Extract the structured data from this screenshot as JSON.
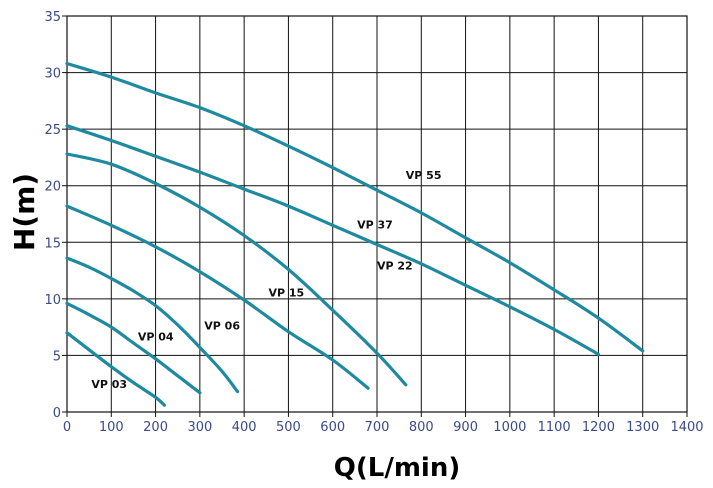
{
  "chart_data": {
    "type": "line",
    "xlabel": "Q(L/min)",
    "ylabel": "H(m)",
    "xlim": [
      0,
      1400
    ],
    "ylim": [
      0,
      35
    ],
    "xticks": [
      "0",
      "100",
      "200",
      "300",
      "400",
      "500",
      "600",
      "700",
      "800",
      "900",
      "1000",
      "1100",
      "1200",
      "1300",
      "1400"
    ],
    "yticks": [
      "0",
      "5",
      "10",
      "15",
      "20",
      "25",
      "30",
      "35"
    ],
    "grid": true,
    "line_color": "#1e8aa0",
    "series": [
      {
        "name": "VP 03",
        "x": [
          0,
          50,
          100,
          150,
          200,
          220
        ],
        "y": [
          7.0,
          5.5,
          4.0,
          2.6,
          1.3,
          0.6
        ]
      },
      {
        "name": "VP 04",
        "x": [
          0,
          50,
          100,
          150,
          200,
          250,
          300
        ],
        "y": [
          9.6,
          8.6,
          7.5,
          6.1,
          4.7,
          3.2,
          1.7
        ]
      },
      {
        "name": "VP 06",
        "x": [
          0,
          50,
          100,
          150,
          200,
          250,
          300,
          350,
          385
        ],
        "y": [
          13.6,
          12.8,
          11.8,
          10.7,
          9.4,
          7.7,
          5.7,
          3.6,
          1.8
        ]
      },
      {
        "name": "VP 15",
        "x": [
          0,
          100,
          200,
          300,
          400,
          500,
          600,
          680
        ],
        "y": [
          18.2,
          16.5,
          14.6,
          12.4,
          9.9,
          7.1,
          4.6,
          2.1
        ]
      },
      {
        "name": "VP 22",
        "x": [
          0,
          100,
          200,
          300,
          400,
          500,
          600,
          700,
          765
        ],
        "y": [
          22.8,
          21.9,
          20.2,
          18.1,
          15.6,
          12.6,
          9.0,
          5.2,
          2.4
        ]
      },
      {
        "name": "VP 37",
        "x": [
          0,
          100,
          200,
          300,
          400,
          500,
          600,
          700,
          800,
          900,
          1000,
          1100,
          1200
        ],
        "y": [
          25.3,
          24.0,
          22.6,
          21.2,
          19.7,
          18.2,
          16.5,
          14.8,
          13.1,
          11.2,
          9.3,
          7.3,
          5.1
        ]
      },
      {
        "name": "VP 55",
        "x": [
          0,
          100,
          200,
          300,
          400,
          500,
          600,
          700,
          800,
          900,
          1000,
          1100,
          1200,
          1300
        ],
        "y": [
          30.8,
          29.6,
          28.2,
          26.9,
          25.3,
          23.5,
          21.6,
          19.6,
          17.6,
          15.4,
          13.2,
          10.8,
          8.3,
          5.4
        ]
      }
    ]
  }
}
